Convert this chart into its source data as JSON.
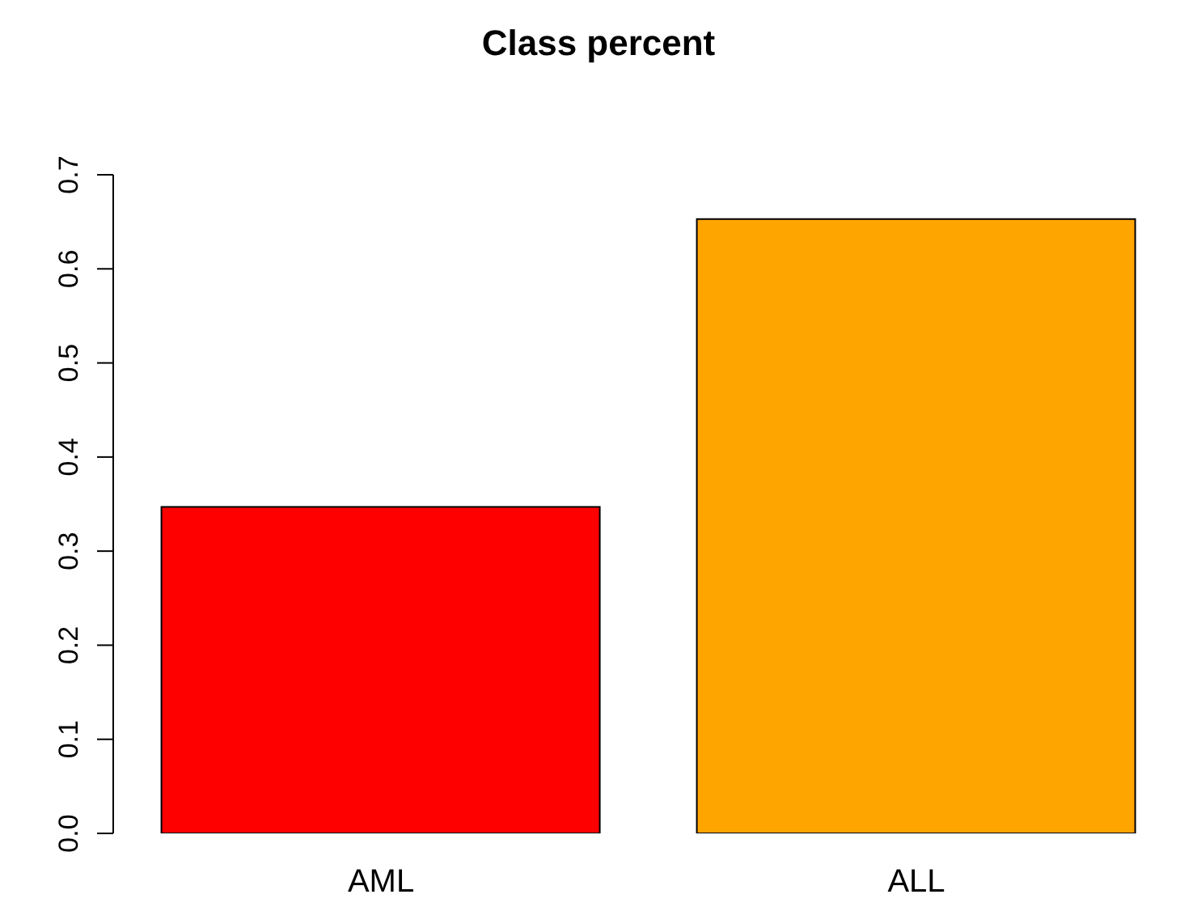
{
  "chart_data": {
    "type": "bar",
    "title": "Class percent",
    "categories": [
      "AML",
      "ALL"
    ],
    "values": [
      0.347,
      0.653
    ],
    "colors": [
      "#ff0000",
      "#ffa500"
    ],
    "ylim": [
      0,
      0.7
    ],
    "yticks": [
      {
        "value": 0,
        "label": "0.0"
      },
      {
        "value": 0.1,
        "label": "0.1"
      },
      {
        "value": 0.2,
        "label": "0.2"
      },
      {
        "value": 0.3,
        "label": "0.3"
      },
      {
        "value": 0.4,
        "label": "0.4"
      },
      {
        "value": 0.5,
        "label": "0.5"
      },
      {
        "value": 0.6,
        "label": "0.6"
      },
      {
        "value": 0.7,
        "label": "0.7"
      }
    ],
    "grid": false,
    "legend": false
  }
}
